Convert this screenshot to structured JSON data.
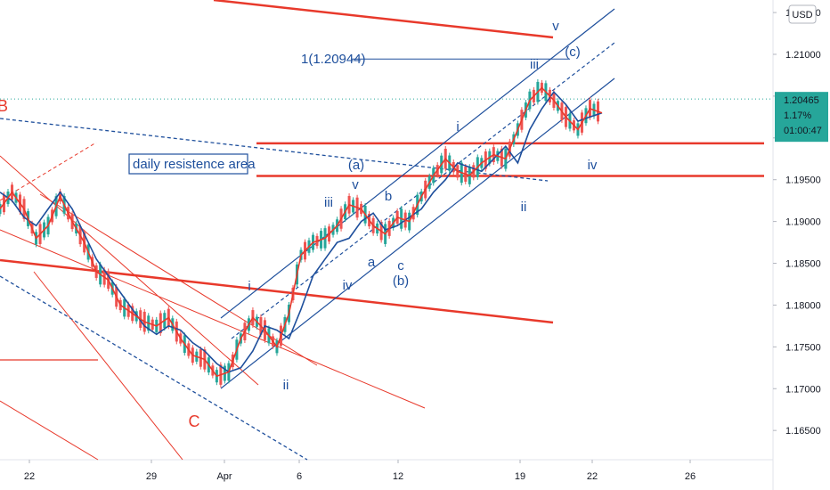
{
  "chart_data": {
    "type": "line",
    "currency_label": "USD",
    "last_price": {
      "value": "1.20465",
      "change": "1.17%",
      "countdown": "01:00:47"
    },
    "y_ticks": [
      "1.16500",
      "1.17000",
      "1.17500",
      "1.18000",
      "1.18500",
      "1.19000",
      "1.19500",
      "1.20000",
      "1.20500",
      "1.21000",
      "1.21500"
    ],
    "ylim": [
      1.1615,
      1.2165
    ],
    "x_ticks": [
      "22",
      "29",
      "Apr",
      "6",
      "12",
      "19",
      "22",
      "26"
    ],
    "series": [
      {
        "values": [
          1.1935,
          1.1925,
          1.1905,
          1.1895,
          1.1915,
          1.1935,
          1.1915,
          1.1885,
          1.1855,
          1.1835,
          1.1815,
          1.1795,
          1.1775,
          1.1765,
          1.1775,
          1.177,
          1.1755,
          1.1745,
          1.173,
          1.172,
          1.1725,
          1.1745,
          1.1775,
          1.177,
          1.176,
          1.1795,
          1.1835,
          1.1855,
          1.1875,
          1.188,
          1.19,
          1.191,
          1.189,
          1.1895,
          1.1905,
          1.1915,
          1.1935,
          1.195,
          1.197,
          1.1965,
          1.196,
          1.1975,
          1.199,
          1.197,
          1.201,
          1.2035,
          1.2055,
          1.204,
          1.202,
          1.2025,
          1.203
        ]
      },
      {
        "values": [
          1.1915,
          1.1935,
          1.1915,
          1.188,
          1.1895,
          1.193,
          1.19,
          1.1875,
          1.184,
          1.183,
          1.18,
          1.179,
          1.178,
          1.1775,
          1.1785,
          1.176,
          1.174,
          1.1735,
          1.1715,
          1.172,
          1.176,
          1.1785,
          1.177,
          1.175,
          1.179,
          1.186,
          1.1875,
          1.188,
          1.1895,
          1.192,
          1.1915,
          1.1895,
          1.1885,
          1.1905,
          1.19,
          1.193,
          1.1955,
          1.1975,
          1.196,
          1.1955,
          1.197,
          1.198,
          1.1975,
          1.201,
          1.2045,
          1.206,
          1.2045,
          1.2025,
          1.201,
          1.2035,
          1.203
        ]
      }
    ],
    "price_label": "1(1.20944)",
    "resistance_label": "daily resistence area",
    "wave_labels_blue": [
      "v",
      "(c)",
      "iii",
      "i",
      "(a)",
      "v",
      "b",
      "iii",
      "iv",
      "a",
      "c",
      "(b)",
      "i",
      "iv",
      "ii",
      "ii"
    ],
    "wave_labels_red": [
      "B",
      "C"
    ],
    "colors": {
      "red": "#e8392b",
      "blue": "#1e4f9c",
      "green": "#26a69a",
      "price_bg": "#26a69a"
    }
  }
}
